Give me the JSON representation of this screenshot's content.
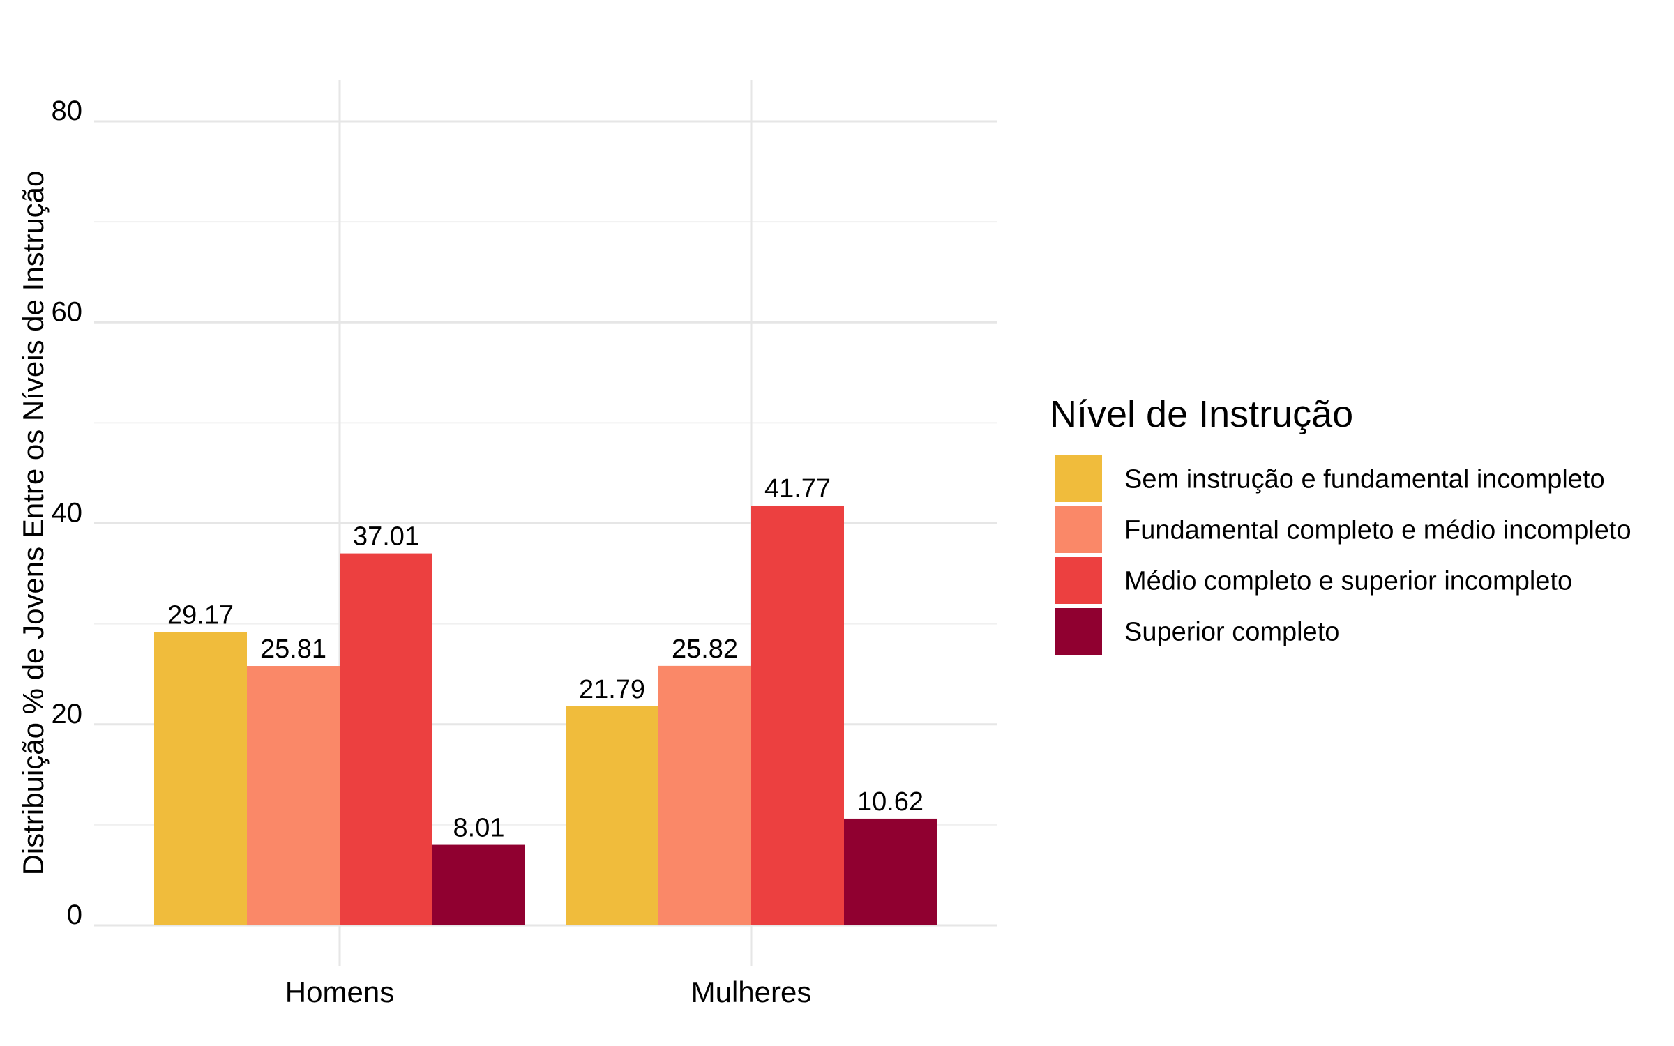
{
  "chart_data": {
    "type": "bar",
    "categories": [
      "Homens",
      "Mulheres"
    ],
    "series": [
      {
        "name": "Sem instrução e fundamental incompleto",
        "values": [
          29.17,
          21.79
        ],
        "labels": [
          "29.17",
          "21.79"
        ],
        "color": "#F0BC3C"
      },
      {
        "name": "Fundamental completo e médio incompleto",
        "values": [
          25.81,
          25.82
        ],
        "labels": [
          "25.81",
          "25.82"
        ],
        "color": "#FA8868"
      },
      {
        "name": "Médio completo e superior incompleto",
        "values": [
          37.01,
          41.77
        ],
        "labels": [
          "37.01",
          "41.77"
        ],
        "color": "#EC4040"
      },
      {
        "name": "Superior completo",
        "values": [
          8.01,
          10.62
        ],
        "labels": [
          "8.01",
          "10.62"
        ],
        "color": "#900030"
      }
    ],
    "title": "",
    "xlabel": "",
    "ylabel": "Distribuição % de Jovens Entre os Níveis de Instrução",
    "ylim": [
      0,
      80
    ],
    "yticks": [
      0,
      20,
      40,
      60,
      80
    ],
    "ytick_labels": [
      "0",
      "20",
      "40",
      "60",
      "80"
    ],
    "grid": true,
    "legend": {
      "title": "Nível de Instrução",
      "position": "right"
    }
  }
}
